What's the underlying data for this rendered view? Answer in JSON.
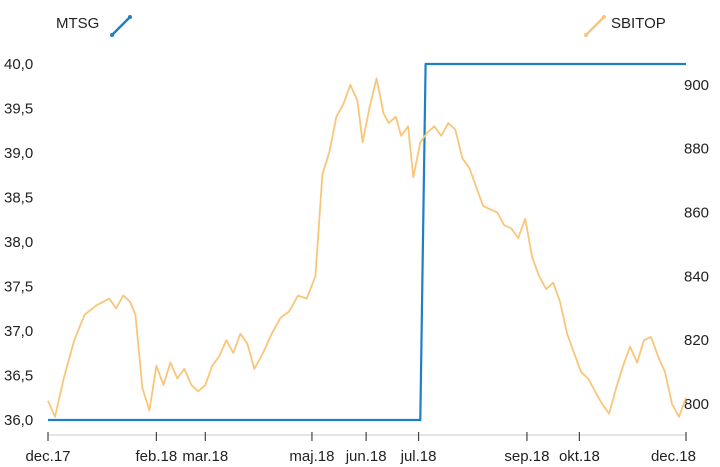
{
  "chart_data": {
    "type": "line",
    "legend": {
      "left": "MTSG",
      "right": "SBITOP",
      "placement": "top"
    },
    "colors": {
      "MTSG": "#1f7fc4",
      "SBITOP": "#f9c679"
    },
    "x_axis": {
      "ticks": [
        {
          "date": "2017-12-01",
          "label": "dec.17"
        },
        {
          "date": "2018-02-01",
          "label": "feb.18"
        },
        {
          "date": "2018-03-01",
          "label": "mar.18"
        },
        {
          "date": "2018-05-01",
          "label": "maj.18"
        },
        {
          "date": "2018-06-01",
          "label": "jun.18"
        },
        {
          "date": "2018-07-01",
          "label": "jul.18"
        },
        {
          "date": "2018-09-01",
          "label": "sep.18"
        },
        {
          "date": "2018-10-01",
          "label": "okt.18"
        },
        {
          "date": "2018-12-01",
          "label": "dec.18"
        }
      ],
      "range": [
        "2017-12-01",
        "2018-12-01"
      ]
    },
    "y_left": {
      "ticks": [
        "40,0",
        "39,5",
        "39,0",
        "38,5",
        "38,0",
        "37,5",
        "37,0",
        "36,5",
        "36,0"
      ],
      "range": [
        36.0,
        40.0
      ]
    },
    "y_right": {
      "ticks": [
        "900",
        "880",
        "860",
        "840",
        "820",
        "800"
      ],
      "range": [
        795.0,
        906.5
      ]
    },
    "grid": false,
    "series": [
      {
        "name": "MTSG",
        "axis": "left",
        "points": [
          [
            "2017-12-01",
            36.0
          ],
          [
            "2018-07-02",
            36.0
          ],
          [
            "2018-07-05",
            40.0
          ],
          [
            "2018-12-01",
            40.0
          ]
        ]
      },
      {
        "name": "SBITOP",
        "axis": "right",
        "points": [
          [
            "2017-12-01",
            801
          ],
          [
            "2017-12-05",
            796
          ],
          [
            "2017-12-10",
            808
          ],
          [
            "2017-12-16",
            820
          ],
          [
            "2017-12-22",
            828
          ],
          [
            "2017-12-29",
            831
          ],
          [
            "2018-01-05",
            833
          ],
          [
            "2018-01-09",
            830
          ],
          [
            "2018-01-13",
            834
          ],
          [
            "2018-01-17",
            832
          ],
          [
            "2018-01-20",
            828
          ],
          [
            "2018-01-24",
            805
          ],
          [
            "2018-01-28",
            798
          ],
          [
            "2018-02-01",
            812
          ],
          [
            "2018-02-05",
            806
          ],
          [
            "2018-02-09",
            813
          ],
          [
            "2018-02-13",
            808
          ],
          [
            "2018-02-17",
            811
          ],
          [
            "2018-02-21",
            806
          ],
          [
            "2018-02-25",
            804
          ],
          [
            "2018-03-01",
            806
          ],
          [
            "2018-03-05",
            812
          ],
          [
            "2018-03-09",
            815
          ],
          [
            "2018-03-13",
            820
          ],
          [
            "2018-03-17",
            816
          ],
          [
            "2018-03-21",
            822
          ],
          [
            "2018-03-25",
            819
          ],
          [
            "2018-03-29",
            811
          ],
          [
            "2018-04-03",
            816
          ],
          [
            "2018-04-08",
            822
          ],
          [
            "2018-04-13",
            827
          ],
          [
            "2018-04-18",
            829
          ],
          [
            "2018-04-23",
            834
          ],
          [
            "2018-04-28",
            833
          ],
          [
            "2018-05-03",
            840
          ],
          [
            "2018-05-07",
            872
          ],
          [
            "2018-05-11",
            879
          ],
          [
            "2018-05-15",
            890
          ],
          [
            "2018-05-19",
            894
          ],
          [
            "2018-05-23",
            900
          ],
          [
            "2018-05-27",
            895
          ],
          [
            "2018-05-30",
            882
          ],
          [
            "2018-06-03",
            893
          ],
          [
            "2018-06-07",
            902
          ],
          [
            "2018-06-11",
            891
          ],
          [
            "2018-06-14",
            888
          ],
          [
            "2018-06-18",
            890
          ],
          [
            "2018-06-21",
            884
          ],
          [
            "2018-06-25",
            887
          ],
          [
            "2018-06-28",
            871
          ],
          [
            "2018-07-02",
            882
          ],
          [
            "2018-07-06",
            885
          ],
          [
            "2018-07-10",
            887
          ],
          [
            "2018-07-14",
            884
          ],
          [
            "2018-07-18",
            888
          ],
          [
            "2018-07-22",
            886
          ],
          [
            "2018-07-26",
            877
          ],
          [
            "2018-07-30",
            874
          ],
          [
            "2018-08-03",
            868
          ],
          [
            "2018-08-07",
            862
          ],
          [
            "2018-08-11",
            861
          ],
          [
            "2018-08-15",
            860
          ],
          [
            "2018-08-19",
            856
          ],
          [
            "2018-08-23",
            855
          ],
          [
            "2018-08-27",
            852
          ],
          [
            "2018-08-31",
            858
          ],
          [
            "2018-09-04",
            846
          ],
          [
            "2018-09-08",
            840
          ],
          [
            "2018-09-12",
            836
          ],
          [
            "2018-09-16",
            838
          ],
          [
            "2018-09-20",
            832
          ],
          [
            "2018-09-24",
            822
          ],
          [
            "2018-09-28",
            816
          ],
          [
            "2018-10-02",
            810
          ],
          [
            "2018-10-06",
            808
          ],
          [
            "2018-10-10",
            804
          ],
          [
            "2018-10-14",
            800
          ],
          [
            "2018-10-18",
            797
          ],
          [
            "2018-10-22",
            805
          ],
          [
            "2018-10-26",
            812
          ],
          [
            "2018-10-30",
            818
          ],
          [
            "2018-11-03",
            813
          ],
          [
            "2018-11-07",
            820
          ],
          [
            "2018-11-11",
            821
          ],
          [
            "2018-11-15",
            815
          ],
          [
            "2018-11-19",
            810
          ],
          [
            "2018-11-23",
            800
          ],
          [
            "2018-11-27",
            796
          ],
          [
            "2018-12-01",
            802
          ]
        ]
      }
    ]
  }
}
